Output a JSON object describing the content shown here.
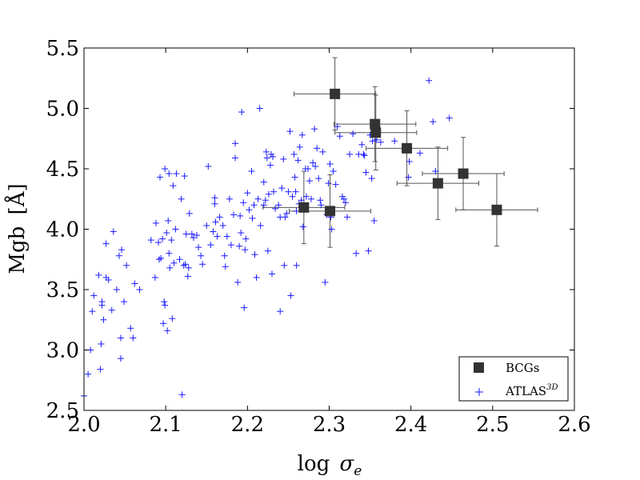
{
  "chart_data": {
    "type": "scatter",
    "title": "",
    "xlabel_base": "log",
    "xlabel_sym": "σ",
    "xlabel_sub": "e",
    "ylabel_base": "Mgb",
    "ylabel_unit": "[Å]",
    "xlim": [
      2.0,
      2.6
    ],
    "ylim": [
      2.5,
      5.5
    ],
    "xticks": [
      "2.0",
      "2.1",
      "2.2",
      "2.3",
      "2.4",
      "2.5",
      "2.6"
    ],
    "yticks": [
      "2.5",
      "3.0",
      "3.5",
      "4.0",
      "4.5",
      "5.0",
      "5.5"
    ],
    "legend": {
      "position": "lower-right",
      "entries": [
        {
          "label": "BCGs",
          "marker": "square"
        },
        {
          "label": "ATLAS",
          "label_sup": "3D",
          "marker": "plus"
        }
      ]
    },
    "colors": {
      "bcg": "#333333",
      "atlas": "#1a1aff",
      "errorbar": "#555555"
    },
    "series": [
      {
        "name": "BCGs",
        "marker": "square",
        "points": [
          {
            "x": 2.307,
            "y": 5.12,
            "xerr": 0.05,
            "yerr": 0.3
          },
          {
            "x": 2.356,
            "y": 4.87,
            "xerr": 0.05,
            "yerr": 0.31
          },
          {
            "x": 2.357,
            "y": 4.8,
            "xerr": 0.05,
            "yerr": 0.31
          },
          {
            "x": 2.395,
            "y": 4.67,
            "xerr": 0.05,
            "yerr": 0.31
          },
          {
            "x": 2.464,
            "y": 4.46,
            "xerr": 0.05,
            "yerr": 0.3
          },
          {
            "x": 2.433,
            "y": 4.38,
            "xerr": 0.05,
            "yerr": 0.3
          },
          {
            "x": 2.505,
            "y": 4.16,
            "xerr": 0.05,
            "yerr": 0.3
          },
          {
            "x": 2.269,
            "y": 4.18,
            "xerr": 0.05,
            "yerr": 0.3
          },
          {
            "x": 2.301,
            "y": 4.15,
            "xerr": 0.05,
            "yerr": 0.3
          }
        ]
      },
      {
        "name": "ATLAS3D",
        "marker": "plus",
        "points": [
          [
            2.0,
            2.62
          ],
          [
            2.005,
            2.8
          ],
          [
            2.008,
            3.0
          ],
          [
            2.01,
            3.32
          ],
          [
            2.012,
            3.45
          ],
          [
            2.018,
            3.62
          ],
          [
            2.02,
            2.84
          ],
          [
            2.021,
            3.05
          ],
          [
            2.022,
            3.4
          ],
          [
            2.022,
            3.37
          ],
          [
            2.024,
            3.25
          ],
          [
            2.027,
            3.6
          ],
          [
            2.027,
            3.88
          ],
          [
            2.03,
            3.58
          ],
          [
            2.034,
            3.33
          ],
          [
            2.036,
            3.98
          ],
          [
            2.04,
            3.5
          ],
          [
            2.043,
            3.78
          ],
          [
            2.045,
            3.1
          ],
          [
            2.045,
            2.93
          ],
          [
            2.046,
            3.83
          ],
          [
            2.049,
            3.4
          ],
          [
            2.052,
            3.7
          ],
          [
            2.057,
            3.18
          ],
          [
            2.06,
            3.1
          ],
          [
            2.062,
            3.55
          ],
          [
            2.068,
            3.5
          ],
          [
            2.082,
            3.91
          ],
          [
            2.087,
            3.6
          ],
          [
            2.088,
            4.05
          ],
          [
            2.091,
            3.89
          ],
          [
            2.092,
            3.75
          ],
          [
            2.093,
            4.43
          ],
          [
            2.094,
            3.76
          ],
          [
            2.096,
            3.92
          ],
          [
            2.097,
            3.22
          ],
          [
            2.098,
            3.4
          ],
          [
            2.099,
            3.37
          ],
          [
            2.099,
            4.5
          ],
          [
            2.101,
            3.97
          ],
          [
            2.102,
            3.16
          ],
          [
            2.103,
            4.07
          ],
          [
            2.104,
            3.8
          ],
          [
            2.104,
            4.46
          ],
          [
            2.105,
            3.68
          ],
          [
            2.107,
            3.91
          ],
          [
            2.108,
            3.26
          ],
          [
            2.109,
            4.36
          ],
          [
            2.11,
            3.72
          ],
          [
            2.112,
            4.0
          ],
          [
            2.113,
            4.46
          ],
          [
            2.117,
            3.75
          ],
          [
            2.119,
            4.25
          ],
          [
            2.12,
            2.63
          ],
          [
            2.122,
            3.7
          ],
          [
            2.123,
            4.44
          ],
          [
            2.124,
            3.71
          ],
          [
            2.125,
            3.96
          ],
          [
            2.127,
            3.61
          ],
          [
            2.128,
            3.68
          ],
          [
            2.129,
            4.13
          ],
          [
            2.132,
            3.96
          ],
          [
            2.134,
            3.93
          ],
          [
            2.138,
            3.95
          ],
          [
            2.14,
            3.85
          ],
          [
            2.143,
            3.78
          ],
          [
            2.145,
            3.71
          ],
          [
            2.15,
            4.03
          ],
          [
            2.152,
            4.52
          ],
          [
            2.155,
            3.87
          ],
          [
            2.158,
            3.98
          ],
          [
            2.16,
            4.26
          ],
          [
            2.16,
            4.21
          ],
          [
            2.161,
            4.06
          ],
          [
            2.163,
            3.94
          ],
          [
            2.166,
            4.1
          ],
          [
            2.17,
            4.03
          ],
          [
            2.172,
            3.78
          ],
          [
            2.173,
            3.69
          ],
          [
            2.175,
            3.94
          ],
          [
            2.178,
            4.25
          ],
          [
            2.18,
            3.87
          ],
          [
            2.183,
            4.12
          ],
          [
            2.185,
            4.59
          ],
          [
            2.185,
            4.71
          ],
          [
            2.188,
            3.56
          ],
          [
            2.19,
            3.86
          ],
          [
            2.191,
            4.11
          ],
          [
            2.192,
            3.97
          ],
          [
            2.193,
            4.97
          ],
          [
            2.195,
            4.22
          ],
          [
            2.196,
            3.35
          ],
          [
            2.197,
            3.83
          ],
          [
            2.198,
            3.92
          ],
          [
            2.2,
            4.3
          ],
          [
            2.202,
            4.16
          ],
          [
            2.205,
            4.48
          ],
          [
            2.206,
            4.09
          ],
          [
            2.208,
            4.2
          ],
          [
            2.209,
            3.79
          ],
          [
            2.211,
            3.6
          ],
          [
            2.213,
            4.25
          ],
          [
            2.215,
            5.0
          ],
          [
            2.216,
            4.03
          ],
          [
            2.22,
            4.2
          ],
          [
            2.22,
            4.39
          ],
          [
            2.222,
            4.24
          ],
          [
            2.223,
            4.64
          ],
          [
            2.224,
            4.59
          ],
          [
            2.225,
            3.82
          ],
          [
            2.226,
            4.29
          ],
          [
            2.228,
            4.53
          ],
          [
            2.229,
            4.62
          ],
          [
            2.23,
            3.63
          ],
          [
            2.231,
            4.6
          ],
          [
            2.232,
            4.31
          ],
          [
            2.234,
            4.17
          ],
          [
            2.238,
            4.2
          ],
          [
            2.24,
            3.32
          ],
          [
            2.24,
            4.1
          ],
          [
            2.242,
            4.34
          ],
          [
            2.244,
            4.58
          ],
          [
            2.245,
            3.7
          ],
          [
            2.246,
            4.1
          ],
          [
            2.248,
            4.13
          ],
          [
            2.25,
            4.31
          ],
          [
            2.252,
            4.81
          ],
          [
            2.253,
            3.45
          ],
          [
            2.255,
            4.27
          ],
          [
            2.257,
            4.62
          ],
          [
            2.258,
            4.43
          ],
          [
            2.259,
            4.31
          ],
          [
            2.26,
            3.7
          ],
          [
            2.26,
            4.15
          ],
          [
            2.262,
            4.57
          ],
          [
            2.263,
            4.21
          ],
          [
            2.264,
            4.68
          ],
          [
            2.266,
            4.24
          ],
          [
            2.267,
            4.78
          ],
          [
            2.268,
            4.02
          ],
          [
            2.27,
            4.19
          ],
          [
            2.271,
            4.5
          ],
          [
            2.272,
            4.27
          ],
          [
            2.274,
            4.5
          ],
          [
            2.276,
            4.4
          ],
          [
            2.278,
            4.25
          ],
          [
            2.28,
            4.55
          ],
          [
            2.282,
            4.83
          ],
          [
            2.283,
            4.52
          ],
          [
            2.285,
            4.67
          ],
          [
            2.287,
            4.42
          ],
          [
            2.289,
            4.24
          ],
          [
            2.29,
            4.2
          ],
          [
            2.292,
            4.64
          ],
          [
            2.295,
            3.56
          ],
          [
            2.297,
            4.12
          ],
          [
            2.299,
            4.38
          ],
          [
            2.301,
            4.54
          ],
          [
            2.302,
            4.1
          ],
          [
            2.303,
            4.0
          ],
          [
            2.305,
            4.48
          ],
          [
            2.308,
            4.37
          ],
          [
            2.31,
            4.85
          ],
          [
            2.313,
            4.77
          ],
          [
            2.316,
            4.27
          ],
          [
            2.318,
            4.25
          ],
          [
            2.32,
            4.22
          ],
          [
            2.322,
            4.1
          ],
          [
            2.325,
            4.62
          ],
          [
            2.329,
            4.79
          ],
          [
            2.333,
            3.8
          ],
          [
            2.336,
            4.62
          ],
          [
            2.34,
            4.7
          ],
          [
            2.342,
            4.62
          ],
          [
            2.343,
            4.61
          ],
          [
            2.345,
            4.47
          ],
          [
            2.348,
            3.82
          ],
          [
            2.35,
            4.78
          ],
          [
            2.352,
            4.42
          ],
          [
            2.353,
            4.73
          ],
          [
            2.355,
            4.07
          ],
          [
            2.358,
            4.74
          ],
          [
            2.36,
            4.8
          ],
          [
            2.38,
            4.73
          ],
          [
            2.397,
            4.43
          ],
          [
            2.422,
            5.23
          ],
          [
            2.427,
            4.89
          ],
          [
            2.43,
            4.48
          ],
          [
            2.447,
            4.92
          ],
          [
            2.363,
            4.72
          ],
          [
            2.398,
            4.56
          ],
          [
            2.411,
            4.63
          ]
        ]
      }
    ]
  }
}
